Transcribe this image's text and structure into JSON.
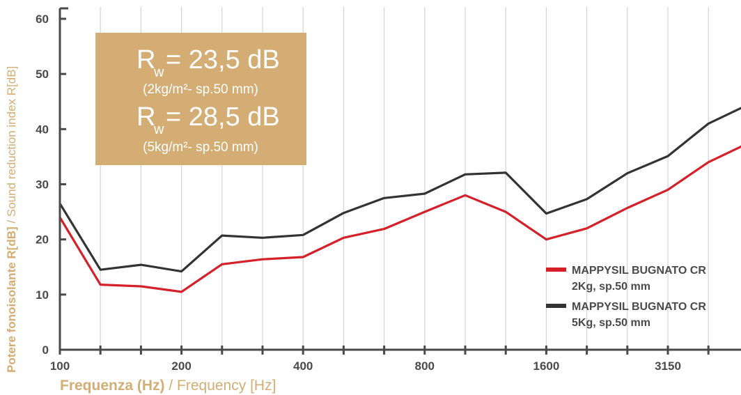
{
  "chart_data": {
    "type": "line",
    "x_ticks": [
      "100",
      "125",
      "160",
      "200",
      "250",
      "315",
      "400",
      "500",
      "630",
      "800",
      "1000",
      "1250",
      "1600",
      "2000",
      "2500",
      "3150",
      "4000",
      "5000"
    ],
    "x_tick_labels": [
      "100",
      "",
      "",
      "200",
      "",
      "",
      "400",
      "",
      "",
      "800",
      "",
      "",
      "1600",
      "",
      "",
      "3150",
      "",
      ""
    ],
    "y_ticks": [
      0,
      10,
      20,
      30,
      40,
      50,
      60
    ],
    "ylim": [
      0,
      60
    ],
    "grid": "vertical",
    "xlabel_bold": "Frequenza (Hz)",
    "xlabel_light": " / Frequency [Hz]",
    "ylabel_bold": "Potere fonoisolante R[dB]",
    "ylabel_light": " / Sound reduction index R[dB]",
    "legend_position": "lower-right",
    "series": [
      {
        "name_line1": "MAPPYSIL BUGNATO CR",
        "name_line2": "2Kg, sp.50 mm",
        "color": "#d5202a",
        "values": [
          24.0,
          11.8,
          11.5,
          10.5,
          15.5,
          16.4,
          16.8,
          20.3,
          21.9,
          25.0,
          28.0,
          25.0,
          20.0,
          22.0,
          25.7,
          29.0,
          34.0,
          37.5
        ]
      },
      {
        "name_line1": "MAPPYSIL BUGNATO CR",
        "name_line2": "5Kg, sp.50 mm",
        "color": "#333333",
        "values": [
          26.5,
          14.5,
          15.4,
          14.2,
          20.7,
          20.3,
          20.8,
          24.8,
          27.5,
          28.3,
          31.8,
          32.1,
          24.7,
          27.3,
          32.0,
          35.1,
          41.0,
          44.5
        ]
      }
    ],
    "annotation": {
      "r1_symbol": "R",
      "r1_sub": "w",
      "r1_value": "= 23,5 dB",
      "r1_note": "(2kg/m²- sp.50 mm)",
      "r2_symbol": "R",
      "r2_sub": "w",
      "r2_value": "= 28,5 dB",
      "r2_note": "(5kg/m²- sp.50 mm)",
      "box_color": "#d3ad73"
    }
  }
}
